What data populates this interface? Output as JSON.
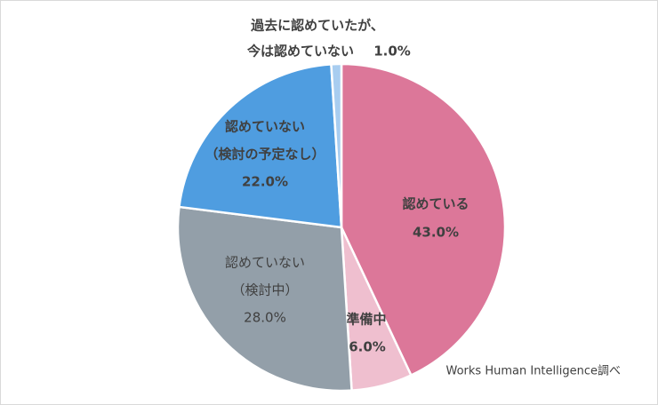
{
  "chart_data": {
    "type": "pie",
    "categories": [
      [
        "認めている"
      ],
      [
        "準備中"
      ],
      [
        "認めていない",
        "（検討中）"
      ],
      [
        "認めていない",
        "（検討の予定なし）"
      ],
      [
        "過去に認めていたが、",
        "今は認めていない"
      ]
    ],
    "values": [
      43.0,
      6.0,
      28.0,
      22.0,
      1.0
    ],
    "value_labels": [
      "43.0%",
      "6.0%",
      "28.0%",
      "22.0%",
      "1.0%"
    ],
    "colors": [
      "#dc7799",
      "#efbfcf",
      "#939fa9",
      "#4f9de0",
      "#a8cdf0"
    ],
    "source": "Works Human Intelligence調べ"
  }
}
